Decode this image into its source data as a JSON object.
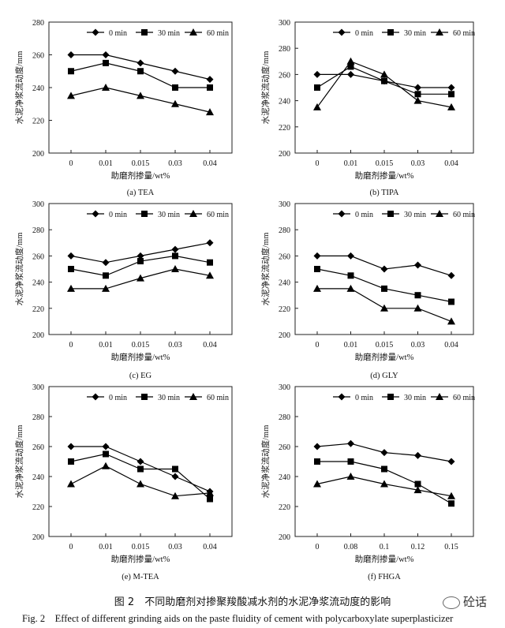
{
  "figure": {
    "caption_cn": "图 2　不同助磨剂对掺聚羧酸减水剂的水泥净浆流动度的影响",
    "caption_en": "Fig. 2　Effect of different grinding aids on the paste fluidity of cement with polycarboxylate superplasticizer",
    "watermark": "砼话"
  },
  "chart_data": [
    {
      "id": "a",
      "type": "line",
      "subtitle": "(a) TEA",
      "xlabel": "助磨剂掺量/wt%",
      "ylabel": "水泥净浆流动度/mm",
      "categories": [
        "0",
        "0.01",
        "0.015",
        "0.03",
        "0.04"
      ],
      "ylim": [
        200,
        280
      ],
      "yticks": [
        200,
        220,
        240,
        260,
        280
      ],
      "legend_position": "top",
      "series": [
        {
          "name": "0 min",
          "marker": "diamond",
          "values": [
            260,
            260,
            255,
            250,
            245
          ]
        },
        {
          "name": "30 min",
          "marker": "square",
          "values": [
            250,
            255,
            250,
            240,
            240
          ]
        },
        {
          "name": "60 min",
          "marker": "triangle",
          "values": [
            235,
            240,
            235,
            230,
            225
          ]
        }
      ]
    },
    {
      "id": "b",
      "type": "line",
      "subtitle": "(b) TIPA",
      "xlabel": "助磨剂掺量/wt%",
      "ylabel": "水泥净浆流动度/mm",
      "categories": [
        "0",
        "0.01",
        "0.015",
        "0.03",
        "0.04"
      ],
      "ylim": [
        200,
        300
      ],
      "yticks": [
        200,
        220,
        240,
        260,
        280,
        300
      ],
      "legend_position": "top",
      "series": [
        {
          "name": "0 min",
          "marker": "diamond",
          "values": [
            260,
            260,
            255,
            250,
            250
          ]
        },
        {
          "name": "30 min",
          "marker": "square",
          "values": [
            250,
            266,
            255,
            245,
            245
          ]
        },
        {
          "name": "60 min",
          "marker": "triangle",
          "values": [
            235,
            270,
            260,
            240,
            235
          ]
        }
      ]
    },
    {
      "id": "c",
      "type": "line",
      "subtitle": "(c) EG",
      "xlabel": "助磨剂掺量/wt%",
      "ylabel": "水泥净浆流动度/mm",
      "categories": [
        "0",
        "0.01",
        "0.015",
        "0.03",
        "0.04"
      ],
      "ylim": [
        200,
        300
      ],
      "yticks": [
        200,
        220,
        240,
        260,
        280,
        300
      ],
      "legend_position": "top",
      "series": [
        {
          "name": "0 min",
          "marker": "diamond",
          "values": [
            260,
            255,
            260,
            265,
            270
          ]
        },
        {
          "name": "30 min",
          "marker": "square",
          "values": [
            250,
            245,
            256,
            260,
            255
          ]
        },
        {
          "name": "60 min",
          "marker": "triangle",
          "values": [
            235,
            235,
            243,
            250,
            245
          ]
        }
      ]
    },
    {
      "id": "d",
      "type": "line",
      "subtitle": "(d) GLY",
      "xlabel": "助磨剂掺量/wt%",
      "ylabel": "水泥净浆流动度/mm",
      "categories": [
        "0",
        "0.01",
        "0.015",
        "0.03",
        "0.04"
      ],
      "ylim": [
        200,
        300
      ],
      "yticks": [
        200,
        220,
        240,
        260,
        280,
        300
      ],
      "legend_position": "top",
      "series": [
        {
          "name": "0 min",
          "marker": "diamond",
          "values": [
            260,
            260,
            250,
            253,
            245
          ]
        },
        {
          "name": "30 min",
          "marker": "square",
          "values": [
            250,
            245,
            235,
            230,
            225
          ]
        },
        {
          "name": "60 min",
          "marker": "triangle",
          "values": [
            235,
            235,
            220,
            220,
            210
          ]
        }
      ]
    },
    {
      "id": "e",
      "type": "line",
      "subtitle": "(e) M-TEA",
      "xlabel": "助磨剂掺量/wt%",
      "ylabel": "水泥净浆流动度/mm",
      "categories": [
        "0",
        "0.01",
        "0.015",
        "0.03",
        "0.04"
      ],
      "ylim": [
        200,
        300
      ],
      "yticks": [
        200,
        220,
        240,
        260,
        280,
        300
      ],
      "legend_position": "top",
      "series": [
        {
          "name": "0 min",
          "marker": "diamond",
          "values": [
            260,
            260,
            250,
            240,
            230
          ]
        },
        {
          "name": "30 min",
          "marker": "square",
          "values": [
            250,
            255,
            245,
            245,
            225
          ]
        },
        {
          "name": "60 min",
          "marker": "triangle",
          "values": [
            235,
            247,
            235,
            227,
            229
          ]
        }
      ]
    },
    {
      "id": "f",
      "type": "line",
      "subtitle": "(f) FHGA",
      "xlabel": "助磨剂掺量/wt%",
      "ylabel": "水泥净浆流动度/mm",
      "categories": [
        "0",
        "0.08",
        "0.1",
        "0.12",
        "0.15"
      ],
      "ylim": [
        200,
        300
      ],
      "yticks": [
        200,
        220,
        240,
        260,
        280,
        300
      ],
      "legend_position": "top",
      "series": [
        {
          "name": "0 min",
          "marker": "diamond",
          "values": [
            260,
            262,
            256,
            254,
            250
          ]
        },
        {
          "name": "30 min",
          "marker": "square",
          "values": [
            250,
            250,
            245,
            235,
            222
          ]
        },
        {
          "name": "60 min",
          "marker": "triangle",
          "values": [
            235,
            240,
            235,
            231,
            227
          ]
        }
      ]
    }
  ]
}
